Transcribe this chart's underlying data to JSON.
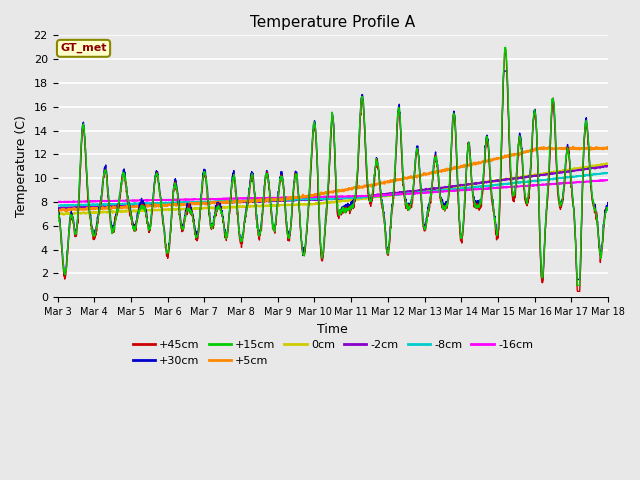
{
  "title": "Temperature Profile A",
  "xlabel": "Time",
  "ylabel": "Temperature (C)",
  "ylim": [
    0,
    22
  ],
  "series_labels": [
    "+45cm",
    "+30cm",
    "+15cm",
    "+5cm",
    "0cm",
    "-2cm",
    "-8cm",
    "-16cm"
  ],
  "series_colors": [
    "#cc0000",
    "#0000cc",
    "#00cc00",
    "#ff8800",
    "#cccc00",
    "#8800cc",
    "#00cccc",
    "#ff00ff"
  ],
  "annotation_label": "GT_met",
  "annotation_bg": "#ffffcc",
  "annotation_border": "#888800",
  "annotation_text_color": "#880000",
  "x_tick_labels": [
    "Mar 3",
    "Mar 4",
    "Mar 5",
    "Mar 6",
    "Mar 7",
    "Mar 8",
    "Mar 9",
    "Mar 10",
    "Mar 11",
    "Mar 12",
    "Mar 13",
    "Mar 14",
    "Mar 15",
    "Mar 16",
    "Mar 17",
    "Mar 18"
  ],
  "bg_color": "#e8e8e8",
  "plot_bg": "#e8e8e8",
  "grid_color": "#ffffff",
  "num_points": 2000,
  "figsize": [
    6.4,
    4.8
  ],
  "dpi": 100
}
